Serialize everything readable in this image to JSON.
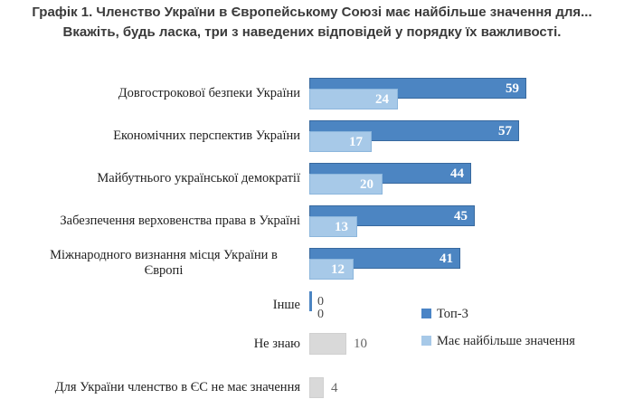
{
  "title": {
    "line1": "Графік 1. Членство України в Європейському Союзі має найбільше значення для...",
    "line2": "Вкажіть, будь ласка, три з наведених відповідей у порядку їх важливості."
  },
  "colors": {
    "top3_bar": "#4c85c2",
    "most_bar": "#a7c9e8",
    "gray_bar": "#d9d9d9",
    "bar_value_text": "#ffffff",
    "outside_value_text": "#666666",
    "title_text": "#3a3a3a"
  },
  "legend": {
    "items": [
      {
        "label": "Топ-3",
        "swatch": "dark-blue-square"
      },
      {
        "label": "Має найбільше значення",
        "swatch": "light-blue-square"
      }
    ]
  },
  "rows": [
    {
      "kind": "dual",
      "label": "Довгострокової безпеки України",
      "top3": 59,
      "most": 24
    },
    {
      "kind": "dual",
      "label": "Економічних перспектив України",
      "top3": 57,
      "most": 17
    },
    {
      "kind": "dual",
      "label": "Майбутнього української демократії",
      "top3": 44,
      "most": 20
    },
    {
      "kind": "dual",
      "label": "Забезпечення верховенства права в Україні",
      "top3": 45,
      "most": 13
    },
    {
      "kind": "dual",
      "label": "Міжнародного визнання місця України в",
      "label2": "Європі",
      "top3": 41,
      "most": 12
    },
    {
      "kind": "zero",
      "label": "Інше",
      "top3": 0,
      "most": 0
    },
    {
      "kind": "gray",
      "label": "Не знаю",
      "value": 10
    },
    {
      "kind": "gray",
      "label": "Для України членство в ЄС не має значення",
      "value": 4
    }
  ],
  "chart_data": {
    "type": "bar",
    "orientation": "horizontal",
    "title": "Графік 1. Членство України в Європейському Союзі має найбільше значення для...",
    "subtitle": "Вкажіть, будь ласка, три з наведених відповідей у порядку їх важливості.",
    "categories": [
      "Довгострокової безпеки України",
      "Економічних перспектив України",
      "Майбутнього української демократії",
      "Забезпечення верховенства права в Україні",
      "Міжнародного визнання місця України в Європі",
      "Інше",
      "Не знаю",
      "Для України членство в ЄС не має значення"
    ],
    "series": [
      {
        "name": "Топ-3",
        "color": "#4c85c2",
        "values": [
          59,
          57,
          44,
          45,
          41,
          0,
          null,
          null
        ]
      },
      {
        "name": "Має найбільше значення",
        "color": "#a7c9e8",
        "values": [
          24,
          17,
          20,
          13,
          12,
          0,
          null,
          null
        ]
      }
    ],
    "single_gray_bars": [
      {
        "category": "Не знаю",
        "value": 10,
        "color": "#d9d9d9"
      },
      {
        "category": "Для України членство в ЄС не має значення",
        "value": 4,
        "color": "#d9d9d9"
      }
    ],
    "value_labels": true,
    "xlim": [
      0,
      65
    ],
    "grid": false,
    "legend_position": "right-of-lower-rows"
  }
}
